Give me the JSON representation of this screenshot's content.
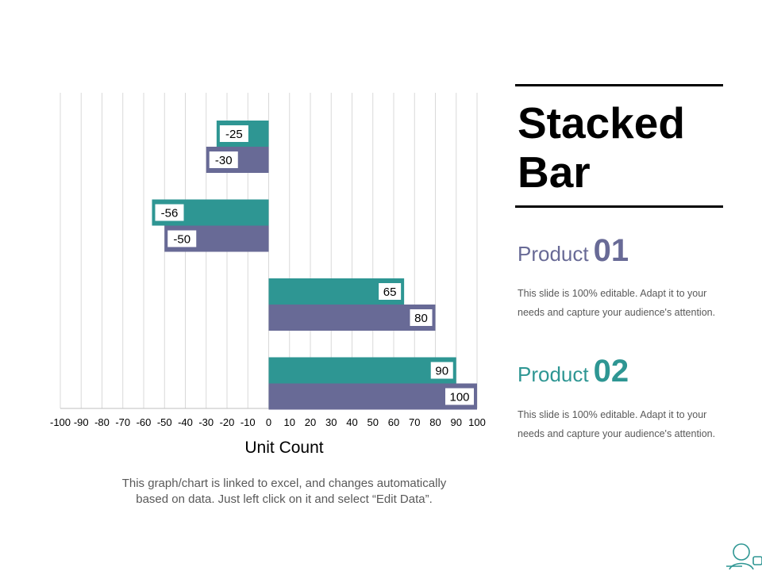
{
  "colors": {
    "product1": "#686a96",
    "product2": "#2e9693",
    "grid": "#d9d9d9",
    "axis": "#bfbfbf",
    "text": "#000000"
  },
  "chart_data": {
    "type": "bar",
    "orientation": "horizontal",
    "xlabel": "Unit Count",
    "xlim": [
      -100,
      100
    ],
    "xticks": [
      -100,
      -90,
      -80,
      -70,
      -60,
      -50,
      -40,
      -30,
      -20,
      -10,
      0,
      10,
      20,
      30,
      40,
      50,
      60,
      70,
      80,
      90,
      100
    ],
    "grid": true,
    "series": [
      {
        "name": "Product 02",
        "color": "#2e9693",
        "values": [
          -25,
          -56,
          65,
          90
        ]
      },
      {
        "name": "Product 01",
        "color": "#686a96",
        "values": [
          -30,
          -50,
          80,
          100
        ]
      }
    ]
  },
  "footnote": {
    "line1": "This graph/chart is linked to excel, and changes automatically",
    "line2": "based on data. Just left click on it and select “Edit Data”."
  },
  "sidebar": {
    "title_line1": "Stacked",
    "title_line2": "Bar",
    "product1": {
      "label": "Product",
      "number": "01",
      "desc_line1": "This slide is 100% editable. Adapt it to your",
      "desc_line2": "needs and capture your audience's attention."
    },
    "product2": {
      "label": "Product",
      "number": "02",
      "desc_line1": "This slide is 100% editable. Adapt it to your",
      "desc_line2": "needs and capture your audience's attention."
    }
  }
}
